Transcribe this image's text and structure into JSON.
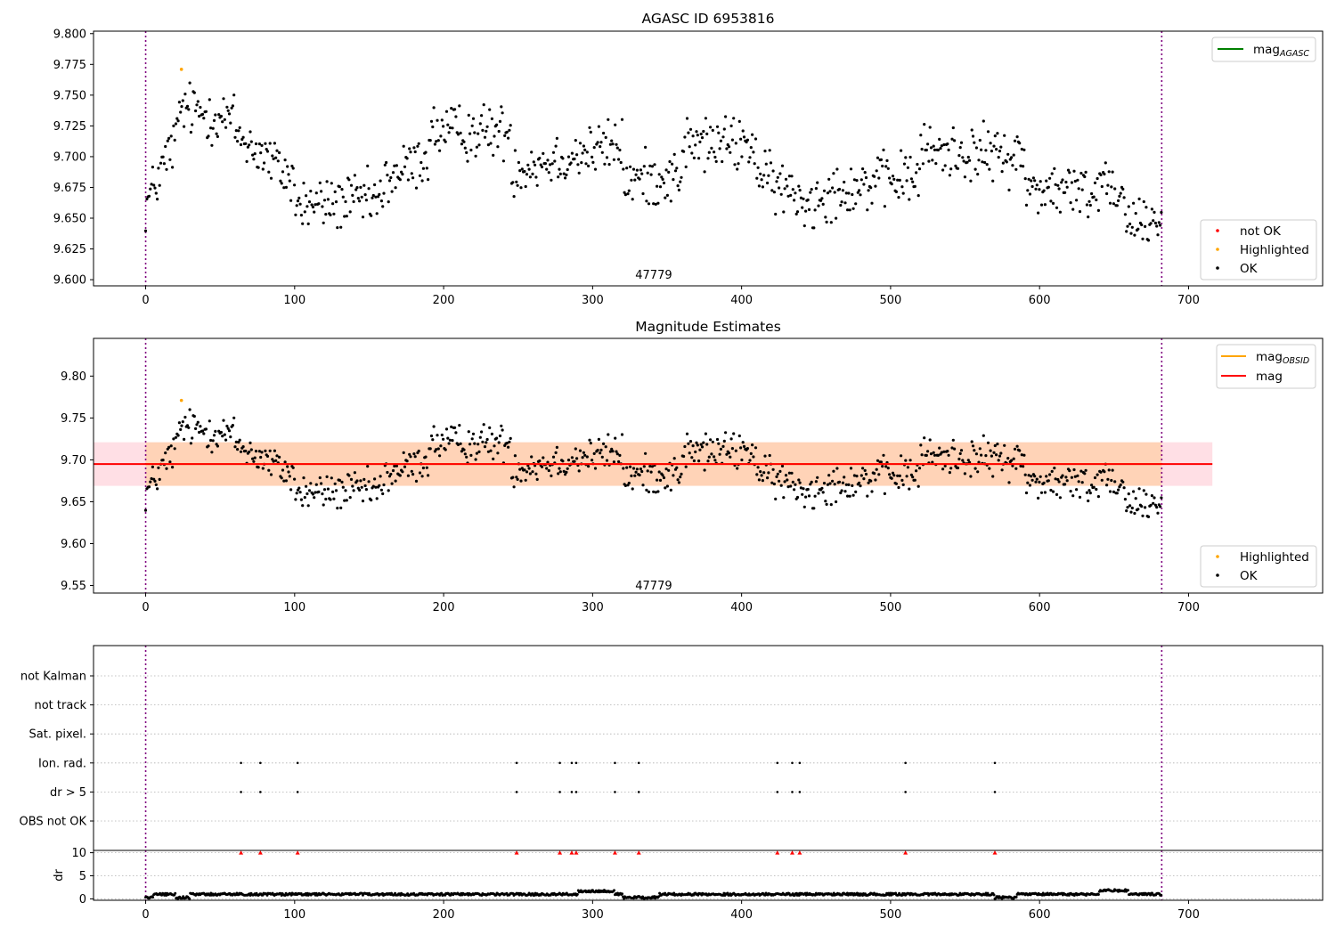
{
  "chart_data": [
    {
      "id": "agasc",
      "type": "scatter",
      "title": "AGASC ID 6953816",
      "xlim": [
        -35,
        790
      ],
      "ylim": [
        9.595,
        9.802
      ],
      "xticks": [
        0,
        100,
        200,
        300,
        400,
        500,
        600,
        700
      ],
      "yticks": [
        9.6,
        9.625,
        9.65,
        9.675,
        9.7,
        9.725,
        9.75,
        9.775,
        9.8
      ],
      "ytick_labels": [
        "9.600",
        "9.625",
        "9.650",
        "9.675",
        "9.700",
        "9.725",
        "9.750",
        "9.775",
        "9.800"
      ],
      "vlines": [
        0,
        682
      ],
      "annotation": "47779",
      "annotation_x": 341,
      "annotation_y": 9.6045,
      "legend_lines": [
        {
          "label": "mag",
          "sub": "AGASC",
          "color": "#008000"
        }
      ],
      "legend_points": [
        {
          "label": "not OK",
          "color": "#ff0000"
        },
        {
          "label": "Highlighted",
          "color": "#ffa500"
        },
        {
          "label": "OK",
          "color": "#000000"
        }
      ],
      "series": [
        {
          "label": "Highlighted",
          "color": "#ffa500",
          "x": [
            24
          ],
          "y": [
            9.771
          ]
        }
      ]
    },
    {
      "id": "mag_estimates",
      "type": "scatter",
      "title": "Magnitude Estimates",
      "xlim": [
        -35,
        790
      ],
      "ylim": [
        9.541,
        9.845
      ],
      "xticks": [
        0,
        100,
        200,
        300,
        400,
        500,
        600,
        700
      ],
      "yticks": [
        9.55,
        9.6,
        9.65,
        9.7,
        9.75,
        9.8
      ],
      "ytick_labels": [
        "9.55",
        "9.60",
        "9.65",
        "9.70",
        "9.75",
        "9.80"
      ],
      "vlines": [
        0,
        682
      ],
      "annotation": "47779",
      "annotation_x": 341,
      "annotation_y": 9.5505,
      "mag": 9.695,
      "mag_band": [
        9.669,
        9.721
      ],
      "obsid_band": [
        9.669,
        9.721
      ],
      "band_xrange": [
        -35,
        716
      ],
      "legend_lines": [
        {
          "label": "mag",
          "sub": "OBSID",
          "color": "#ffa500"
        },
        {
          "label": "mag",
          "sub": "",
          "color": "#ff0000"
        }
      ],
      "legend_points": [
        {
          "label": "Highlighted",
          "color": "#ffa500"
        },
        {
          "label": "OK",
          "color": "#000000"
        }
      ],
      "series": [
        {
          "label": "Highlighted",
          "color": "#ffa500",
          "x": [
            24
          ],
          "y": [
            9.771
          ]
        }
      ]
    },
    {
      "id": "flags",
      "type": "scatter",
      "xlim": [
        -35,
        790
      ],
      "categories": [
        "OBS not OK",
        "dr > 5",
        "Ion. rad.",
        "Sat. pixel.",
        "not track",
        "not Kalman"
      ],
      "vlines": [
        0,
        682
      ],
      "flag_x": [
        64,
        77,
        102,
        249,
        278,
        286,
        289,
        315,
        331,
        424,
        434,
        439,
        510,
        570
      ]
    },
    {
      "id": "dr",
      "type": "scatter",
      "ylabel": "dr",
      "xlim": [
        -35,
        790
      ],
      "ylim": [
        -0.3,
        10.5
      ],
      "xticks": [
        0,
        100,
        200,
        300,
        400,
        500,
        600,
        700
      ],
      "yticks": [
        0,
        5,
        10
      ],
      "ytick_labels": [
        "0",
        "5",
        "10"
      ],
      "vlines": [
        0,
        682
      ],
      "clip_marker_y": 10,
      "clip_marker_color": "#ff0000",
      "flag_x": [
        64,
        77,
        102,
        249,
        278,
        286,
        289,
        315,
        331,
        424,
        434,
        439,
        510,
        570
      ]
    }
  ]
}
